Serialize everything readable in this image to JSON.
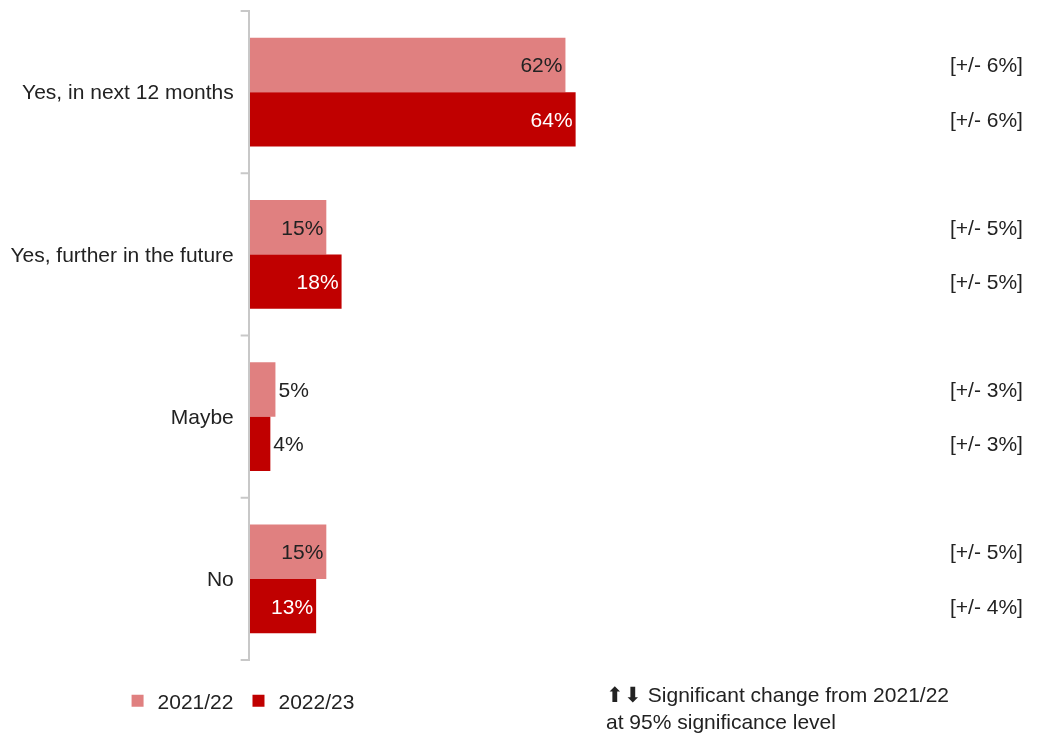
{
  "chart_data": {
    "type": "bar",
    "orientation": "horizontal",
    "categories": [
      "Yes, in next 12 months",
      "Yes, further in the future",
      "Maybe",
      "No"
    ],
    "series": [
      {
        "name": "2021/22",
        "color": "#e08080",
        "values": [
          62,
          15,
          5,
          15
        ],
        "value_labels": [
          "62%",
          "15%",
          "5%",
          "15%"
        ]
      },
      {
        "name": "2022/23",
        "color": "#c00000",
        "values": [
          64,
          18,
          4,
          13
        ],
        "value_labels": [
          "64%",
          "18%",
          "4%",
          "13%"
        ]
      }
    ],
    "legend": "bottom left",
    "annotations": [
      "[+/- 6%]",
      "[+/- 6%]",
      "[+/- 5%]",
      "[+/- 5%]",
      "[+/- 3%]",
      "[+/- 3%]",
      "[+/- 5%]",
      "[+/- 4%]",
      "⬆⬇ Significant change from 2021/22\nat 95% significance level"
    ]
  }
}
